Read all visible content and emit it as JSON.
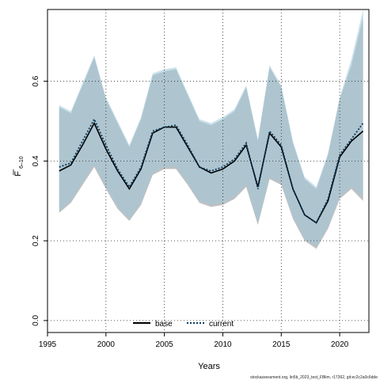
{
  "chart_data": {
    "type": "line",
    "xlabel": "Years",
    "ylabel_main": "F",
    "ylabel_sub": "6–10",
    "xlim": [
      1995,
      2022.5
    ],
    "ylim": [
      -0.03,
      0.78
    ],
    "xticks": [
      1995,
      2000,
      2005,
      2010,
      2015,
      2020
    ],
    "yticks": [
      0.0,
      0.2,
      0.4,
      0.6
    ],
    "ytick_labels": [
      "0.0",
      "0.2",
      "0.4",
      "0.6"
    ],
    "grid": true,
    "legend_position": "bottom-center",
    "x": [
      1996,
      1997,
      1998,
      1999,
      2000,
      2001,
      2002,
      2003,
      2004,
      2005,
      2006,
      2007,
      2008,
      2009,
      2010,
      2011,
      2012,
      2013,
      2014,
      2015,
      2016,
      2017,
      2018,
      2019,
      2020,
      2021,
      2022
    ],
    "series": [
      {
        "name": "base",
        "color": "#000000",
        "style": "solid",
        "band_color": "#8c8c8c",
        "values": [
          0.375,
          0.39,
          0.44,
          0.495,
          0.43,
          0.375,
          0.33,
          0.38,
          0.47,
          0.485,
          0.485,
          0.435,
          0.385,
          0.37,
          0.38,
          0.4,
          0.44,
          0.335,
          0.47,
          0.435,
          0.33,
          0.265,
          0.245,
          0.3,
          0.41,
          0.45,
          0.475
        ],
        "lower": [
          0.27,
          0.295,
          0.34,
          0.385,
          0.33,
          0.28,
          0.25,
          0.29,
          0.365,
          0.38,
          0.38,
          0.34,
          0.295,
          0.285,
          0.29,
          0.305,
          0.335,
          0.24,
          0.355,
          0.34,
          0.255,
          0.2,
          0.18,
          0.23,
          0.305,
          0.33,
          0.3
        ],
        "upper": [
          0.535,
          0.52,
          0.59,
          0.66,
          0.555,
          0.495,
          0.435,
          0.505,
          0.615,
          0.625,
          0.63,
          0.565,
          0.5,
          0.49,
          0.505,
          0.525,
          0.585,
          0.45,
          0.635,
          0.585,
          0.445,
          0.355,
          0.33,
          0.415,
          0.555,
          0.64,
          0.76
        ]
      },
      {
        "name": "current",
        "color": "#0a3b5c",
        "style": "dotted",
        "band_color": "#9ec9dc",
        "values": [
          0.385,
          0.395,
          0.45,
          0.505,
          0.44,
          0.38,
          0.335,
          0.385,
          0.475,
          0.485,
          0.49,
          0.44,
          0.385,
          0.375,
          0.385,
          0.405,
          0.445,
          0.33,
          0.475,
          0.44,
          0.33,
          0.265,
          0.245,
          0.305,
          0.415,
          0.455,
          0.495
        ],
        "lower": [
          0.275,
          0.3,
          0.345,
          0.39,
          0.335,
          0.285,
          0.255,
          0.295,
          0.37,
          0.385,
          0.385,
          0.345,
          0.3,
          0.29,
          0.295,
          0.31,
          0.34,
          0.245,
          0.36,
          0.345,
          0.26,
          0.205,
          0.185,
          0.235,
          0.31,
          0.335,
          0.31
        ],
        "upper": [
          0.54,
          0.525,
          0.595,
          0.665,
          0.56,
          0.5,
          0.44,
          0.51,
          0.62,
          0.63,
          0.635,
          0.57,
          0.505,
          0.495,
          0.51,
          0.53,
          0.59,
          0.455,
          0.64,
          0.59,
          0.45,
          0.36,
          0.335,
          0.42,
          0.56,
          0.655,
          0.78
        ]
      }
    ]
  },
  "legend": {
    "base_label": "base",
    "current_label": "current"
  },
  "footer_text": "stockassessment.org, lin5b_2023_test_FBlim, r17362, git:ec2c2a0c6dde"
}
